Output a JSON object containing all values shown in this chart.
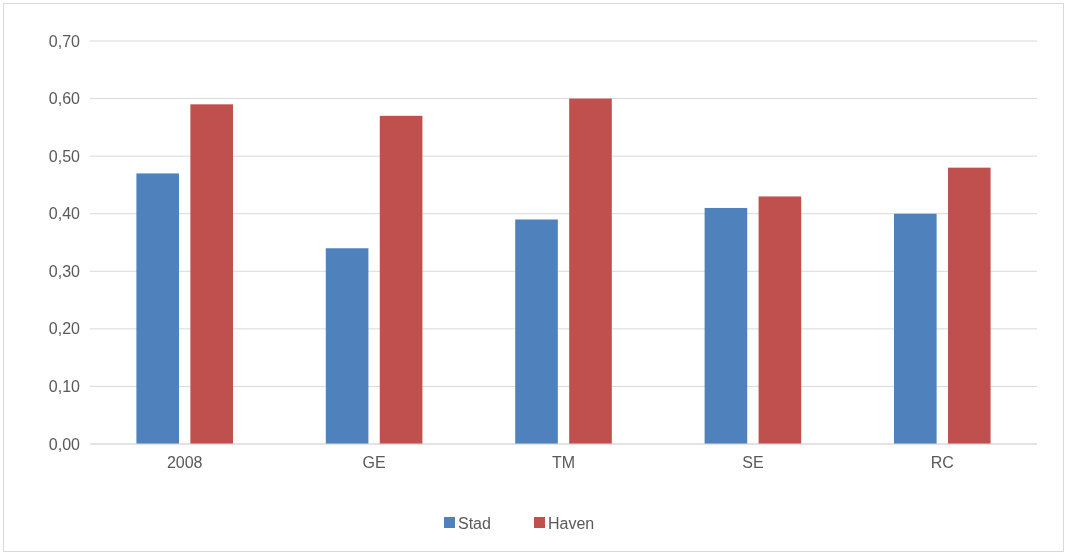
{
  "chart_data": {
    "type": "bar",
    "categories": [
      "2008",
      "GE",
      "TM",
      "SE",
      "RC"
    ],
    "series": [
      {
        "name": "Stad",
        "color": "#4f81bd",
        "values": [
          0.47,
          0.34,
          0.39,
          0.41,
          0.4
        ]
      },
      {
        "name": "Haven",
        "color": "#c0504d",
        "values": [
          0.59,
          0.57,
          0.6,
          0.43,
          0.48
        ]
      }
    ],
    "ylim": [
      0,
      0.7
    ],
    "yticks": [
      {
        "value": 0,
        "label": "0,00"
      },
      {
        "value": 0.1,
        "label": "0,10"
      },
      {
        "value": 0.2,
        "label": "0,20"
      },
      {
        "value": 0.3,
        "label": "0,30"
      },
      {
        "value": 0.4,
        "label": "0,40"
      },
      {
        "value": 0.5,
        "label": "0,50"
      },
      {
        "value": 0.6,
        "label": "0,60"
      },
      {
        "value": 0.7,
        "label": "0,70"
      }
    ],
    "grid": "y",
    "legend": "bottom"
  }
}
